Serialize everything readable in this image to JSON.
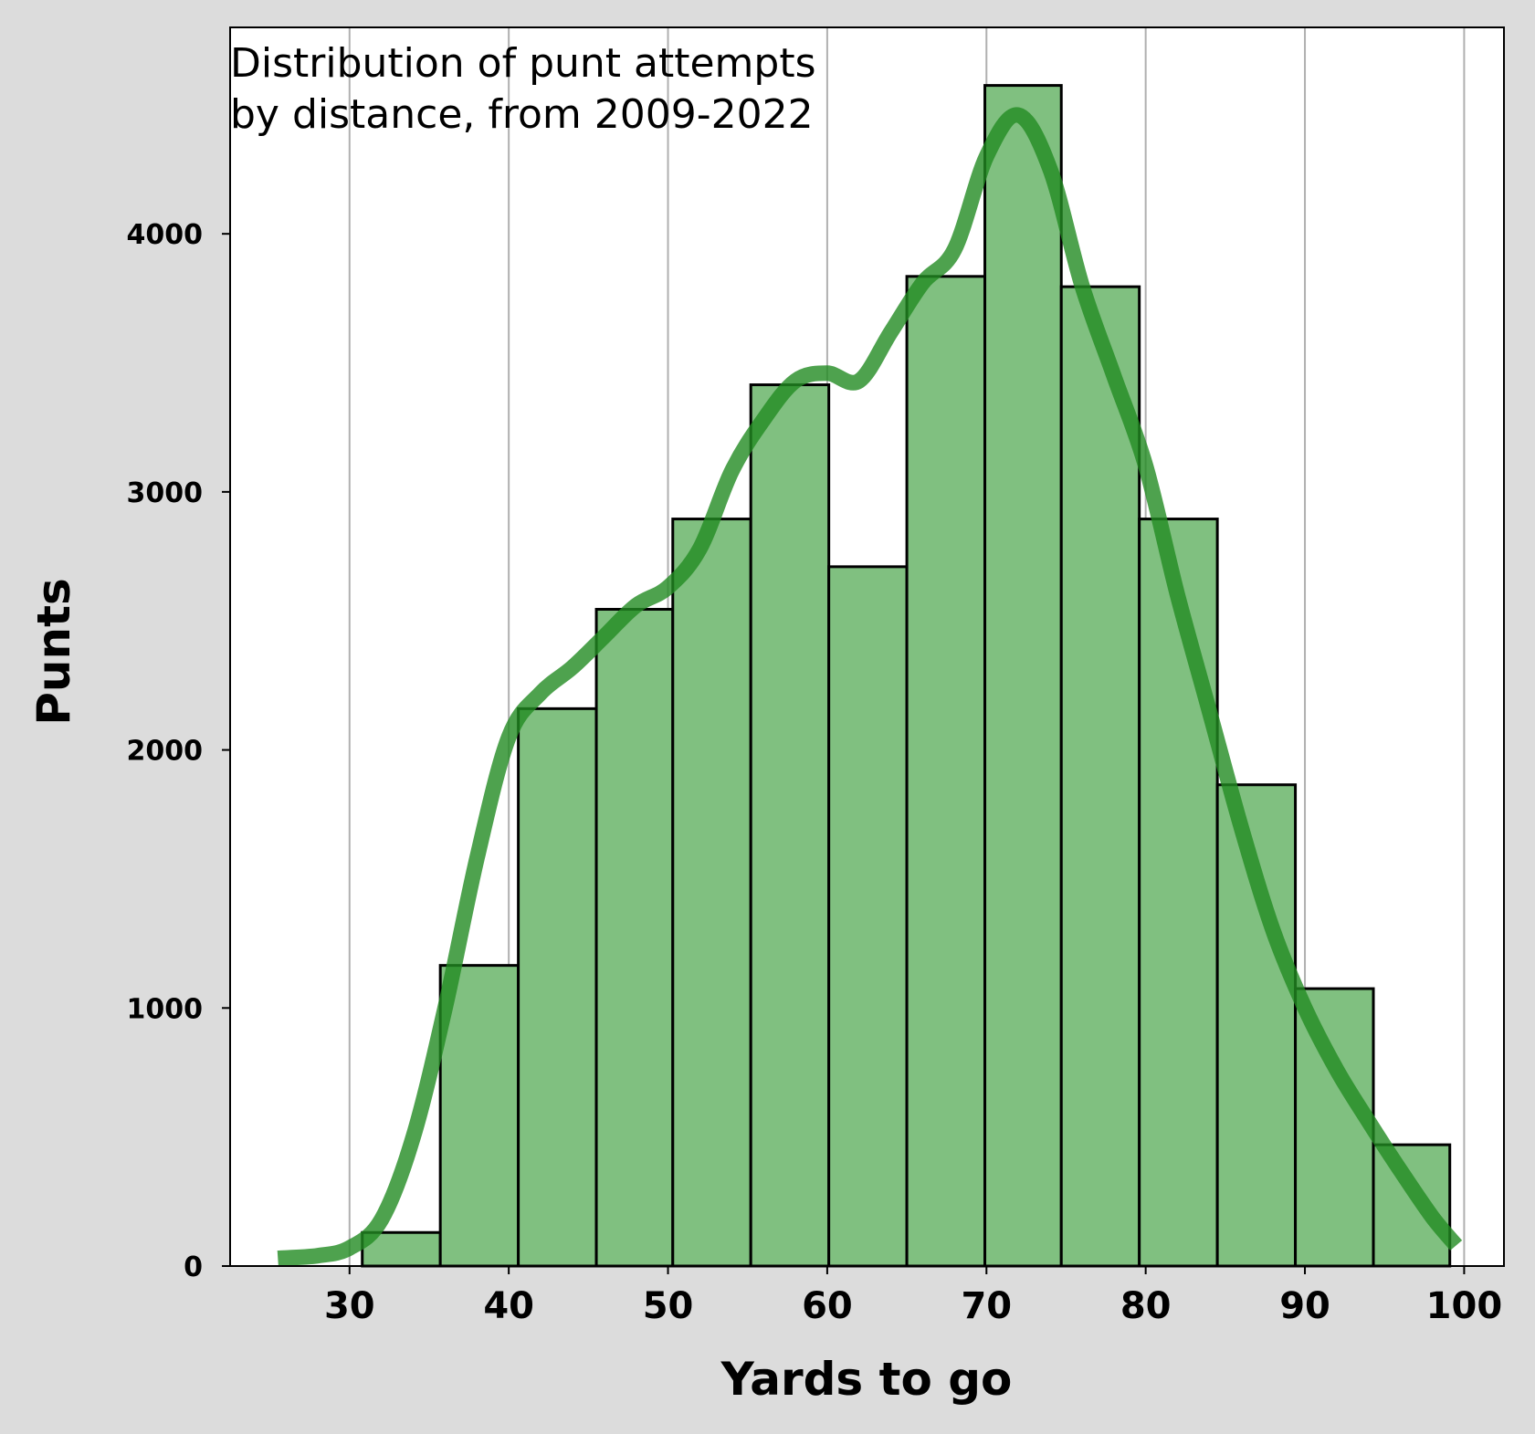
{
  "chart_data": {
    "type": "bar",
    "title_lines": [
      "Distribution of punt attempts",
      "by distance, from 2009-2022"
    ],
    "xlabel": "Yards to go",
    "ylabel": "Punts",
    "xlim": [
      22.5,
      102.5
    ],
    "ylim": [
      0,
      4800
    ],
    "xticks": [
      "30",
      "40",
      "50",
      "60",
      "70",
      "80",
      "90",
      "100"
    ],
    "xtick_values": [
      30,
      40,
      50,
      60,
      70,
      80,
      90,
      100
    ],
    "yticks": [
      "0",
      "1000",
      "2000",
      "3000",
      "4000"
    ],
    "ytick_values": [
      0,
      1000,
      2000,
      3000,
      4000
    ],
    "grid": "x",
    "bar_color": "#80c080",
    "bar_edge_color": "#000000",
    "kde_color": "#228b22",
    "bins": [
      {
        "start": 30.8,
        "end": 35.7,
        "value": 130
      },
      {
        "start": 35.7,
        "end": 40.6,
        "value": 1165
      },
      {
        "start": 40.6,
        "end": 45.5,
        "value": 2160
      },
      {
        "start": 45.5,
        "end": 50.3,
        "value": 2545
      },
      {
        "start": 50.3,
        "end": 55.2,
        "value": 2895
      },
      {
        "start": 55.2,
        "end": 60.1,
        "value": 3415
      },
      {
        "start": 60.1,
        "end": 65.0,
        "value": 2710
      },
      {
        "start": 65.0,
        "end": 69.9,
        "value": 3835
      },
      {
        "start": 69.9,
        "end": 74.7,
        "value": 4575
      },
      {
        "start": 74.7,
        "end": 79.6,
        "value": 3795
      },
      {
        "start": 79.6,
        "end": 84.5,
        "value": 2895
      },
      {
        "start": 84.5,
        "end": 89.4,
        "value": 1865
      },
      {
        "start": 89.4,
        "end": 94.3,
        "value": 1075
      },
      {
        "start": 94.3,
        "end": 99.1,
        "value": 470
      }
    ],
    "kde": {
      "x": [
        25.5,
        28,
        30,
        32,
        34,
        36,
        38,
        40,
        42,
        44,
        46,
        48,
        50,
        52,
        54,
        56,
        58,
        60,
        62,
        64,
        66,
        68,
        70,
        72,
        74,
        76,
        78,
        80,
        82,
        84,
        86,
        88,
        90,
        92,
        94,
        96,
        98,
        99.5
      ],
      "y": [
        30,
        40,
        70,
        180,
        500,
        1000,
        1580,
        2050,
        2220,
        2320,
        2440,
        2560,
        2630,
        2780,
        3080,
        3280,
        3430,
        3460,
        3430,
        3620,
        3810,
        3940,
        4300,
        4460,
        4250,
        3800,
        3450,
        3100,
        2600,
        2150,
        1700,
        1300,
        1000,
        760,
        560,
        370,
        190,
        80
      ]
    }
  }
}
